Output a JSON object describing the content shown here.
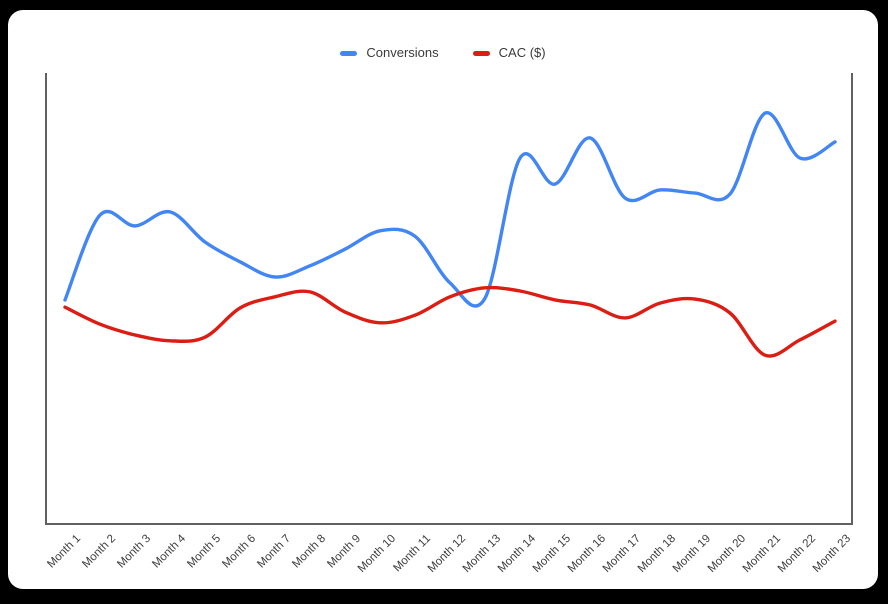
{
  "window": {
    "background_color": "#000000",
    "card_background_color": "#ffffff"
  },
  "legend": {
    "items": [
      {
        "label": "Conversions",
        "color": "#4285f4"
      },
      {
        "label": "CAC ($)",
        "color": "#dc1d13"
      }
    ]
  },
  "chart_data": {
    "type": "line",
    "smooth": true,
    "title": "",
    "xlabel": "",
    "ylabel": "",
    "grid": false,
    "legend_position": "top-center",
    "x_tick_rotation": -45,
    "y_tick_labels_visible": false,
    "ylim": [
      0,
      100
    ],
    "axis_color": "#616161",
    "tick_label_color": "#3d3d3d",
    "categories": [
      "Month 1",
      "Month 2",
      "Month 3",
      "Month 4",
      "Month 5",
      "Month 6",
      "Month 7",
      "Month 8",
      "Month 9",
      "Month 10",
      "Month 11",
      "Month 12",
      "Month 13",
      "Month 14",
      "Month 15",
      "Month 16",
      "Month 17",
      "Month 18",
      "Month 19",
      "Month 20",
      "Month 21",
      "Month 22",
      "Month 23"
    ],
    "series": [
      {
        "name": "Conversions",
        "color": "#4285f4",
        "values": [
          49.9,
          68.8,
          66.4,
          69.5,
          62.8,
          58.4,
          55.0,
          57.5,
          61.2,
          65.3,
          64.1,
          53.7,
          50.3,
          81.5,
          75.7,
          86.0,
          72.6,
          74.4,
          73.7,
          73.5,
          91.5,
          81.5,
          85.1
        ]
      },
      {
        "name": "CAC ($)",
        "color": "#dc1d13",
        "values": [
          48.3,
          44.5,
          42.1,
          40.8,
          41.6,
          48.1,
          50.6,
          51.7,
          47.2,
          44.8,
          46.5,
          50.6,
          52.6,
          51.9,
          49.9,
          48.8,
          45.9,
          49.2,
          50.1,
          47.0,
          37.6,
          41.0,
          45.2
        ]
      }
    ]
  }
}
